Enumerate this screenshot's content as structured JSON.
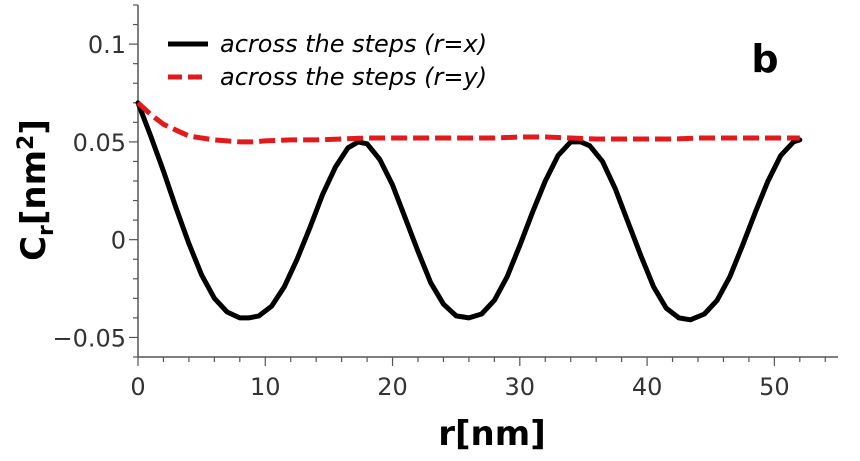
{
  "chart_data": {
    "type": "line",
    "panel_label": "b",
    "xlabel": "r[nm]",
    "ylabel": {
      "main": "C",
      "sub": "r",
      "unit_open": "[nm",
      "unit_sup": "2",
      "unit_close": "]"
    },
    "xlim": [
      0,
      55
    ],
    "ylim": [
      -0.06,
      0.12
    ],
    "x_ticks": [
      0,
      10,
      20,
      30,
      40,
      50
    ],
    "x_tick_labels": [
      "0",
      "10",
      "20",
      "30",
      "40",
      "50"
    ],
    "y_ticks": [
      -0.05,
      0,
      0.05,
      0.1
    ],
    "y_tick_labels": [
      "−0.05",
      "0",
      "0.05",
      "0.1"
    ],
    "grid": false,
    "legend_position": "top-left",
    "series": [
      {
        "name": "across the steps (r=x)",
        "color": "#000000",
        "style": "solid",
        "x": [
          0,
          1,
          2,
          3,
          4,
          5,
          6,
          7,
          8,
          8.7,
          9.5,
          10.5,
          11.5,
          12.5,
          13.5,
          14.5,
          15.5,
          16.5,
          17.3,
          18,
          19,
          20,
          21,
          22,
          23,
          24,
          25,
          26.0,
          27,
          28,
          29,
          30,
          31,
          32,
          33,
          34,
          34.8,
          35.5,
          36.5,
          37.5,
          38.5,
          39.5,
          40.5,
          41.5,
          42.5,
          43.4,
          44.5,
          45.5,
          46.5,
          47.5,
          48.5,
          49.5,
          50.5,
          51.5,
          52.0
        ],
        "y": [
          0.07,
          0.053,
          0.035,
          0.016,
          -0.002,
          -0.018,
          -0.03,
          -0.037,
          -0.04,
          -0.04,
          -0.039,
          -0.034,
          -0.024,
          -0.01,
          0.006,
          0.023,
          0.037,
          0.047,
          0.05,
          0.049,
          0.041,
          0.028,
          0.011,
          -0.006,
          -0.022,
          -0.033,
          -0.039,
          -0.04,
          -0.038,
          -0.031,
          -0.019,
          -0.003,
          0.014,
          0.03,
          0.043,
          0.05,
          0.05,
          0.048,
          0.04,
          0.026,
          0.009,
          -0.008,
          -0.024,
          -0.035,
          -0.04,
          -0.041,
          -0.038,
          -0.031,
          -0.019,
          -0.003,
          0.014,
          0.03,
          0.043,
          0.05,
          0.051
        ]
      },
      {
        "name": "across the steps (r=y)",
        "color": "#e31a1c",
        "style": "dashed",
        "x": [
          0,
          1,
          2,
          3,
          4,
          5,
          6,
          7,
          8,
          9,
          10,
          12,
          14,
          16,
          18,
          20,
          22,
          24,
          26,
          28,
          30,
          32,
          34,
          36,
          38,
          40,
          42,
          44,
          46,
          48,
          50,
          52
        ],
        "y": [
          0.07,
          0.064,
          0.059,
          0.056,
          0.053,
          0.052,
          0.051,
          0.0505,
          0.05,
          0.05,
          0.0505,
          0.051,
          0.051,
          0.0515,
          0.052,
          0.052,
          0.052,
          0.052,
          0.052,
          0.052,
          0.0525,
          0.0525,
          0.052,
          0.0515,
          0.0515,
          0.0515,
          0.0515,
          0.052,
          0.052,
          0.052,
          0.052,
          0.052
        ]
      }
    ]
  }
}
